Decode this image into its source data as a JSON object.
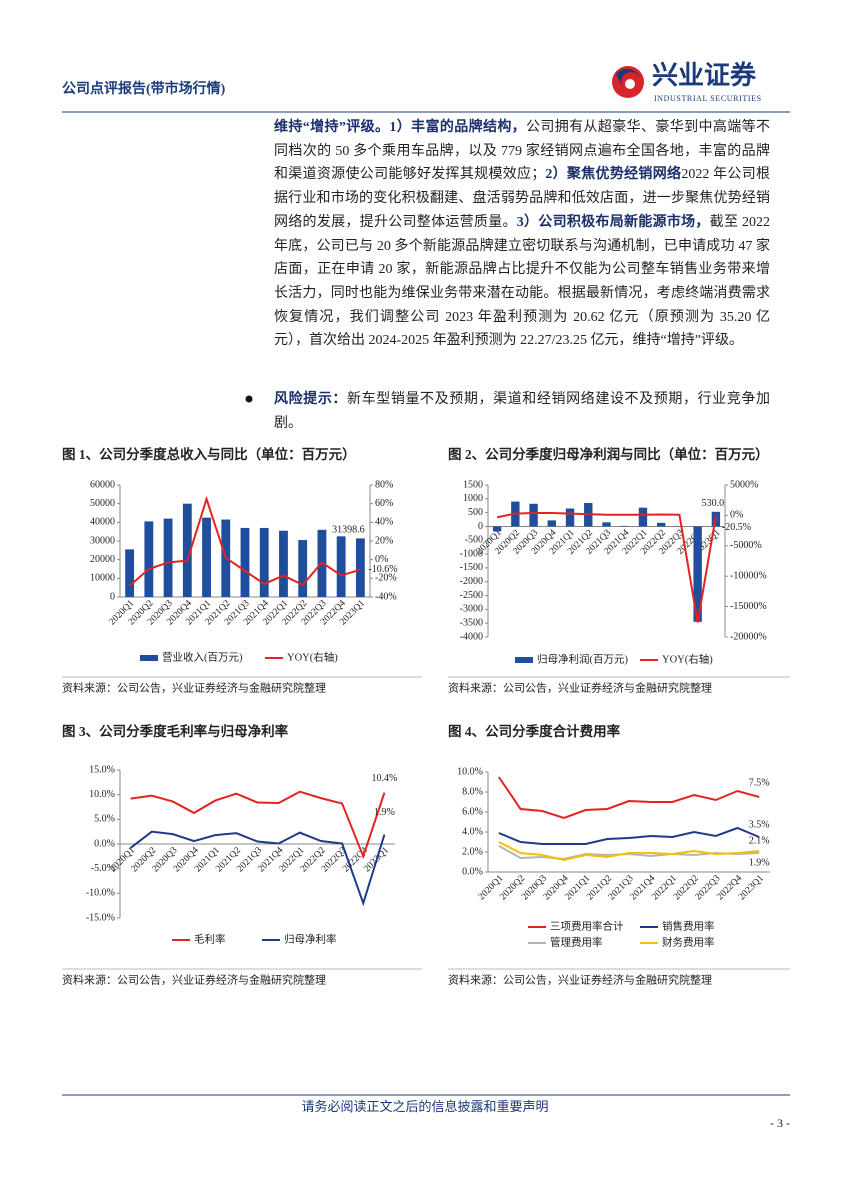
{
  "header": {
    "title": "公司点评报告(带市场行情)",
    "logo_cn": "兴业证券",
    "logo_en": "INDUSTRIAL SECURITIES"
  },
  "body": {
    "paragraph": [
      {
        "text": "维持“增持”评级。",
        "bold": true
      },
      {
        "text": "1）丰富的品牌结构，",
        "bold": true
      },
      {
        "text": "公司拥有从超豪华、豪华到中高端等不同档次的 50 多个乘用车品牌，以及 779 家经销网点遍布全国各地，丰富的品牌和渠道资源使公司能够好发挥其规模效应；",
        "bold": false
      },
      {
        "text": "2）聚焦优势经销网络",
        "bold": true
      },
      {
        "text": "2022 年公司根据行业和市场的变化积极翻建、盘活弱势品牌和低效店面，进一步聚焦优势经销网络的发展，提升公司整体运营质量。",
        "bold": false
      },
      {
        "text": "3）公司积极布局新能源市场，",
        "bold": true
      },
      {
        "text": "截至 2022 年底，公司已与 20 多个新能源品牌建立密切联系与沟通机制，已申请成功 47 家店面，正在申请 20 家，新能源品牌占比提升不仅能为公司整车销售业务带来增长活力，同时也能为维保业务带来潜在动能。根据最新情况，考虑终端消费需求恢复情况，我们调整公司 2023 年盈利预测为 20.62 亿元（原预测为 35.20 亿元），首次给出 2024-2025 年盈利预测为 22.27/23.25 亿元，维持“增持”评级。",
        "bold": false
      }
    ],
    "bullet": [
      {
        "text": "风险提示：",
        "bold": true
      },
      {
        "text": "新车型销量不及预期，渠道和经销网络建设不及预期，行业竞争加剧。",
        "bold": false
      }
    ]
  },
  "chart_data": [
    {
      "type": "combo",
      "title": "图 1、公司分季度总收入与同比（单位：百万元）",
      "source": "资料来源：公司公告，兴业证券经济与金融研究院整理",
      "categories": [
        "2020Q1",
        "2020Q2",
        "2020Q3",
        "2020Q4",
        "2021Q1",
        "2021Q2",
        "2021Q3",
        "2021Q4",
        "2022Q1",
        "2022Q2",
        "2022Q3",
        "2022Q4",
        "2023Q1"
      ],
      "ylim": [
        0,
        60000
      ],
      "yticks": [
        0,
        10000,
        20000,
        30000,
        40000,
        50000,
        60000
      ],
      "y2lim": [
        -40,
        80
      ],
      "y2ticks": [
        {
          "value": -40,
          "label": "-40%"
        },
        {
          "value": -20,
          "label": "-20%"
        },
        {
          "value": 0,
          "label": "0%"
        },
        {
          "value": 20,
          "label": "20%"
        },
        {
          "value": 40,
          "label": "40%"
        },
        {
          "value": 60,
          "label": "60%"
        },
        {
          "value": 80,
          "label": "80%"
        }
      ],
      "series": [
        {
          "name": "营业收入(百万元)",
          "type": "bar",
          "color": "#1f4e9c",
          "values": [
            25500,
            40500,
            42000,
            50000,
            42500,
            41500,
            37000,
            37000,
            35500,
            30500,
            36000,
            32500,
            31398.6
          ],
          "value_labels": [
            null,
            null,
            null,
            null,
            null,
            null,
            null,
            null,
            null,
            null,
            null,
            null,
            "31398.6"
          ]
        },
        {
          "name": "YOY(右轴)",
          "type": "line",
          "axis": "y2",
          "color": "#e3231f",
          "values": [
            -28,
            -10,
            -3,
            -1,
            65,
            2,
            -12,
            -26,
            -17,
            -27,
            -3,
            -17,
            -10.6
          ],
          "value_labels": [
            null,
            null,
            null,
            null,
            null,
            null,
            null,
            null,
            null,
            null,
            null,
            null,
            "-10.6%"
          ]
        }
      ]
    },
    {
      "type": "combo",
      "title": "图 2、公司分季度归母净利润与同比（单位：百万元）",
      "source": "资料来源：公司公告，兴业证券经济与金融研究院整理",
      "x_axis": "zero",
      "categories": [
        "2020Q1",
        "2020Q2",
        "2020Q3",
        "2020Q4",
        "2021Q1",
        "2021Q2",
        "2021Q3",
        "2021Q4",
        "2022Q1",
        "2022Q2",
        "2022Q3",
        "2022Q4",
        "2023Q1"
      ],
      "ylim": [
        -4000,
        1500
      ],
      "yticks": [
        -4000,
        -3500,
        -3000,
        -2500,
        -2000,
        -1500,
        -1000,
        -500,
        0,
        500,
        1000,
        1500
      ],
      "y2lim": [
        -20000,
        5000
      ],
      "y2ticks": [
        {
          "value": -20000,
          "label": "-20000%"
        },
        {
          "value": -15000,
          "label": "-15000%"
        },
        {
          "value": -10000,
          "label": "-10000%"
        },
        {
          "value": -5000,
          "label": "-5000%"
        },
        {
          "value": 0,
          "label": "0%"
        },
        {
          "value": 5000,
          "label": "5000%"
        }
      ],
      "series": [
        {
          "name": "归母净利润(百万元)",
          "type": "bar",
          "color": "#1f4e9c",
          "values": [
            -180,
            900,
            820,
            220,
            650,
            850,
            150,
            20,
            680,
            130,
            10,
            -3450,
            530
          ],
          "value_labels": [
            null,
            null,
            null,
            null,
            null,
            null,
            null,
            null,
            null,
            null,
            null,
            null,
            "530.0"
          ]
        },
        {
          "name": "YOY(右轴)",
          "type": "line",
          "axis": "y2",
          "color": "#e3231f",
          "values": [
            -300,
            300,
            400,
            400,
            300,
            200,
            100,
            100,
            100,
            150,
            100,
            -17600,
            -20.5
          ],
          "value_labels": [
            null,
            null,
            null,
            null,
            null,
            null,
            null,
            null,
            null,
            null,
            null,
            null,
            "-20.5%"
          ]
        }
      ]
    },
    {
      "type": "line",
      "title": "图 3、公司分季度毛利率与归母净利率",
      "source": "资料来源：公司公告，兴业证券经济与金融研究院整理",
      "x_axis": "zero",
      "categories": [
        "2020Q1",
        "2020Q2",
        "2020Q3",
        "2020Q4",
        "2021Q1",
        "2021Q2",
        "2021Q3",
        "2021Q4",
        "2022Q1",
        "2022Q2",
        "2022Q3",
        "2022Q4",
        "2023Q1"
      ],
      "ylim": [
        -15,
        15
      ],
      "yticks": [
        {
          "value": -15,
          "label": "-15.0%"
        },
        {
          "value": -10,
          "label": "-10.0%"
        },
        {
          "value": -5,
          "label": "-5.0%"
        },
        {
          "value": 0,
          "label": "0.0%"
        },
        {
          "value": 5,
          "label": "5.0%"
        },
        {
          "value": 10,
          "label": "10.0%"
        },
        {
          "value": 15,
          "label": "15.0%"
        }
      ],
      "series": [
        {
          "name": "毛利率",
          "color": "#e3231f",
          "values": [
            9.2,
            9.8,
            8.6,
            6.3,
            8.8,
            10.2,
            8.4,
            8.3,
            10.6,
            9.3,
            8.2,
            -2.5,
            10.4
          ],
          "value_labels": [
            null,
            null,
            null,
            null,
            null,
            null,
            null,
            null,
            null,
            null,
            null,
            null,
            "10.4%"
          ]
        },
        {
          "name": "归母净利率",
          "color": "#1f3a8a",
          "values": [
            -0.8,
            2.5,
            2.0,
            0.6,
            1.8,
            2.2,
            0.5,
            0.1,
            2.3,
            0.6,
            0.1,
            -12.0,
            1.9
          ],
          "value_labels": [
            null,
            null,
            null,
            null,
            null,
            null,
            null,
            null,
            null,
            null,
            null,
            null,
            "1.9%"
          ]
        }
      ]
    },
    {
      "type": "line",
      "title": "图 4、公司分季度合计费用率",
      "source": "资料来源：公司公告，兴业证券经济与金融研究院整理",
      "categories": [
        "2020Q1",
        "2020Q2",
        "2020Q3",
        "2020Q4",
        "2021Q1",
        "2021Q2",
        "2021Q3",
        "2021Q4",
        "2022Q1",
        "2022Q2",
        "2022Q3",
        "2022Q4",
        "2023Q1"
      ],
      "ylim": [
        0,
        10
      ],
      "yticks": [
        {
          "value": 0,
          "label": "0.0%"
        },
        {
          "value": 2,
          "label": "2.0%"
        },
        {
          "value": 4,
          "label": "4.0%"
        },
        {
          "value": 6,
          "label": "6.0%"
        },
        {
          "value": 8,
          "label": "8.0%"
        },
        {
          "value": 10,
          "label": "10.0%"
        }
      ],
      "series": [
        {
          "name": "三项费用率合计",
          "color": "#e3231f",
          "values": [
            9.5,
            6.3,
            6.1,
            5.4,
            6.2,
            6.3,
            7.1,
            7.0,
            7.0,
            7.7,
            7.2,
            8.1,
            7.5
          ],
          "value_labels": [
            null,
            null,
            null,
            null,
            null,
            null,
            null,
            null,
            null,
            null,
            null,
            null,
            "7.5%"
          ]
        },
        {
          "name": "销售费用率",
          "color": "#1f3a8a",
          "values": [
            3.9,
            3.0,
            2.8,
            2.8,
            2.8,
            3.3,
            3.4,
            3.6,
            3.5,
            4.0,
            3.6,
            4.4,
            3.5
          ],
          "value_labels": [
            null,
            null,
            null,
            null,
            null,
            null,
            null,
            null,
            null,
            null,
            null,
            null,
            "3.5%"
          ]
        },
        {
          "name": "管理费用率",
          "color": "#b5b5b5",
          "values": [
            2.6,
            1.4,
            1.5,
            1.3,
            1.8,
            1.7,
            1.8,
            1.6,
            1.8,
            1.7,
            1.9,
            1.8,
            1.9
          ],
          "value_labels": [
            null,
            null,
            null,
            null,
            null,
            null,
            null,
            null,
            null,
            null,
            null,
            null,
            "1.9%"
          ]
        },
        {
          "name": "财务费用率",
          "color": "#f5c000",
          "values": [
            3.0,
            1.9,
            1.7,
            1.2,
            1.7,
            1.5,
            1.9,
            1.9,
            1.8,
            2.1,
            1.8,
            1.9,
            2.1
          ],
          "value_labels": [
            null,
            null,
            null,
            null,
            null,
            null,
            null,
            null,
            null,
            null,
            null,
            null,
            "2.1%"
          ]
        }
      ]
    }
  ],
  "footer": {
    "notice": "请务必阅读正文之后的信息披露和重要声明",
    "page": "- 3 -"
  }
}
